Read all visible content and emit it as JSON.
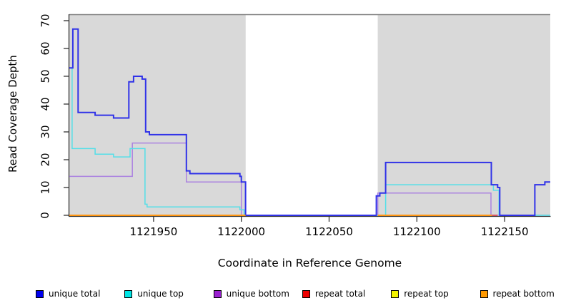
{
  "figure": {
    "ylabel": "Read Coverage Depth",
    "xlabel": "Coordinate in Reference Genome",
    "y_ticks": [
      0,
      10,
      20,
      30,
      40,
      50,
      60,
      70
    ],
    "x_ticks": [
      1121950,
      1122000,
      1122050,
      1122100,
      1122150
    ],
    "plot_background_gray": "#d9d9d9",
    "plot_top_border_color": "#7f7f7f",
    "axis_color": "#333333"
  },
  "chart_data": {
    "type": "line",
    "title": "",
    "xlabel": "Coordinate in Reference Genome",
    "ylabel": "Read Coverage Depth",
    "xlim": [
      1121902,
      1122176
    ],
    "ylim": [
      0,
      72.3
    ],
    "grid": false,
    "step": "after",
    "legend_position": "bottom",
    "background_regions": [
      {
        "from": 1121902,
        "to": 1122002.5,
        "color": "#d9d9d9"
      },
      {
        "from": 1122002.5,
        "to": 1122077.7,
        "color": "#ffffff"
      },
      {
        "from": 1122077.7,
        "to": 1122176,
        "color": "#d9d9d9"
      }
    ],
    "series": [
      {
        "name": "green (unlabeled baseline)",
        "color": "#7ede7e",
        "width": 1.4,
        "segments": [
          {
            "pts": [
              [
                1122147,
                0
              ]
            ],
            "xend": 1122176
          }
        ]
      },
      {
        "name": "unique bottom",
        "color": "#ab82e0",
        "width": 1.5,
        "segments": [
          {
            "pts": [
              [
                1121902,
                14
              ],
              [
                1121937.9,
                26
              ],
              [
                1121968.7,
                12
              ],
              [
                1122000,
                0
              ],
              [
                1122077.7,
                8
              ],
              [
                1122142.2,
                0
              ]
            ],
            "xend": 1122176
          }
        ]
      },
      {
        "name": "repeat total",
        "color": "#e03c3c",
        "width": 1.5,
        "segments": [
          {
            "pts": [
              [
                1122142.7,
                0
              ]
            ],
            "xend": 1122146
          }
        ]
      },
      {
        "name": "unique top",
        "color": "#55dfe8",
        "width": 1.5,
        "segments": [
          {
            "pts": [
              [
                1121902,
                53
              ],
              [
                1121903.6,
                24
              ],
              [
                1121916.7,
                22
              ],
              [
                1121927.2,
                21
              ],
              [
                1121936.6,
                24
              ],
              [
                1121945.1,
                4
              ],
              [
                1121946.3,
                3
              ],
              [
                1121999.2,
                2
              ],
              [
                1122001.6,
                0
              ],
              [
                1122082.2,
                11
              ],
              [
                1122143.6,
                9
              ],
              [
                1122146.8,
                0
              ]
            ],
            "xend": 1122176
          }
        ]
      },
      {
        "name": "unique total",
        "color": "#3032e8",
        "width": 2,
        "segments": [
          {
            "pts": [
              [
                1121902,
                53
              ],
              [
                1121904,
                67
              ],
              [
                1121907,
                37
              ],
              [
                1121916.7,
                36
              ],
              [
                1121927.2,
                35
              ],
              [
                1121935.9,
                48
              ],
              [
                1121938.6,
                50
              ],
              [
                1121943.5,
                49
              ],
              [
                1121945.5,
                30
              ],
              [
                1121947.6,
                29
              ],
              [
                1121968.7,
                16
              ],
              [
                1121970.7,
                15
              ],
              [
                1121999.2,
                14
              ],
              [
                1122000,
                12
              ],
              [
                1122002.4,
                0
              ],
              [
                1122076.9,
                7
              ],
              [
                1122078.9,
                8
              ],
              [
                1122082.2,
                19
              ],
              [
                1122142.4,
                11
              ],
              [
                1122146,
                10
              ],
              [
                1122147.2,
                0
              ],
              [
                1122167.2,
                11
              ],
              [
                1122172.9,
                12
              ]
            ],
            "xend": 1122176
          }
        ]
      },
      {
        "name": "repeat bottom",
        "color": "#ff9612",
        "width": 2,
        "segments": [
          {
            "pts": [
              [
                1121902,
                0
              ]
            ],
            "xend": 1122002.4
          },
          {
            "pts": [
              [
                1122077.7,
                0
              ]
            ],
            "xend": 1122142.7
          }
        ]
      },
      {
        "name": "repeat top",
        "color": "#f5f500",
        "width": 1.5,
        "note": "at 0, hidden under repeat bottom",
        "segments": []
      }
    ]
  },
  "legend": {
    "items": [
      {
        "label": "unique total",
        "color": "#0000ee"
      },
      {
        "label": "unique top",
        "color": "#00e5e5"
      },
      {
        "label": "unique bottom",
        "color": "#9a20d0"
      },
      {
        "label": "repeat total",
        "color": "#ee0000"
      },
      {
        "label": "repeat top",
        "color": "#f5f500"
      },
      {
        "label": "repeat bottom",
        "color": "#ff9900"
      }
    ]
  }
}
